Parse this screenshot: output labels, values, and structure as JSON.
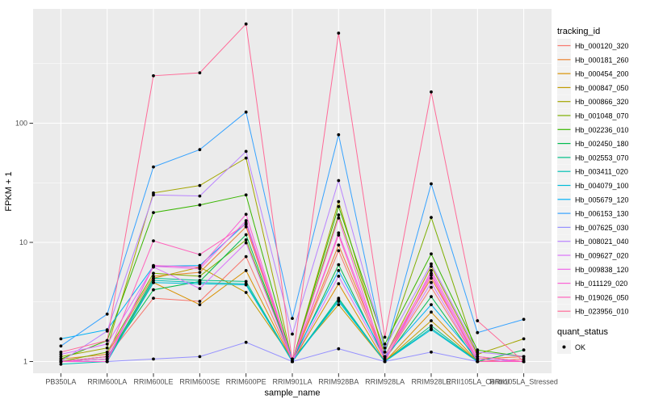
{
  "figure": {
    "xlabel": "sample_name",
    "ylabel": "FPKM + 1",
    "legend_title_series": "tracking_id",
    "legend_title_points": "quant_status",
    "quant_status_label": "OK"
  },
  "chart_data": {
    "type": "line",
    "title": "",
    "xlabel": "sample_name",
    "ylabel": "FPKM + 1",
    "y_scale": "log10",
    "y_ticks": [
      1,
      10,
      100
    ],
    "y_minor_gridlines": [
      3.162,
      31.62,
      316.2
    ],
    "ylim": [
      0.93,
      900
    ],
    "grid": true,
    "panel_bg": "#EBEBEB",
    "gridline_color": "#FFFFFF",
    "point_color": "#000000",
    "legend_position": "right",
    "legend_titles": {
      "series": "tracking_id",
      "points": "quant_status"
    },
    "point_status_label": "OK",
    "categories": [
      "PB350LA",
      "RRIM600LA",
      "RRIM600LE",
      "RRIM600SE",
      "RRIM600PE",
      "RRIM901LA",
      "RRIM928BA",
      "RRIM928LA",
      "RRIM928LE",
      "RRII105LA_Control",
      "RRII105LA_Stressed"
    ],
    "series": [
      {
        "name": "Hb_000120_320",
        "color": "#F8766D",
        "values": [
          1.0,
          1.1,
          3.4,
          3.2,
          7.6,
          1.0,
          8.5,
          1.05,
          4.2,
          1.0,
          1.05
        ]
      },
      {
        "name": "Hb_000181_260",
        "color": "#EA8331",
        "values": [
          1.05,
          1.15,
          5.2,
          5.6,
          13.5,
          1.0,
          9.5,
          1.1,
          5.0,
          1.05,
          1.1
        ]
      },
      {
        "name": "Hb_000454_200",
        "color": "#D89000",
        "values": [
          1.0,
          1.05,
          4.6,
          3.0,
          5.8,
          1.0,
          4.5,
          1.0,
          2.6,
          1.0,
          1.0
        ]
      },
      {
        "name": "Hb_000847_050",
        "color": "#C09B00",
        "values": [
          1.0,
          1.0,
          5.0,
          6.2,
          3.8,
          1.05,
          3.0,
          1.0,
          2.2,
          1.0,
          1.0
        ]
      },
      {
        "name": "Hb_000866_320",
        "color": "#A3A500",
        "values": [
          1.1,
          1.3,
          26,
          30,
          51,
          1.0,
          22,
          1.1,
          6.3,
          1.15,
          1.55
        ]
      },
      {
        "name": "Hb_001048_070",
        "color": "#7CAE00",
        "values": [
          1.0,
          1.2,
          5.5,
          5.2,
          10.5,
          1.0,
          17,
          1.2,
          16.2,
          1.1,
          1.0
        ]
      },
      {
        "name": "Hb_002236_010",
        "color": "#39B600",
        "values": [
          1.05,
          1.5,
          17.8,
          20.6,
          25,
          1.0,
          20,
          1.4,
          8.0,
          1.25,
          1.1
        ]
      },
      {
        "name": "Hb_002450_180",
        "color": "#00BB4E",
        "values": [
          1.0,
          1.1,
          4.0,
          4.7,
          11.6,
          1.0,
          6.5,
          1.05,
          3.5,
          1.0,
          1.25
        ]
      },
      {
        "name": "Hb_002553_070",
        "color": "#00C087",
        "values": [
          1.0,
          1.05,
          5.0,
          4.8,
          4.7,
          1.0,
          3.4,
          1.0,
          2.0,
          1.0,
          1.0
        ]
      },
      {
        "name": "Hb_003411_020",
        "color": "#00C0B4",
        "values": [
          0.95,
          1.0,
          4.8,
          4.6,
          4.5,
          1.0,
          3.3,
          1.0,
          1.9,
          1.0,
          1.0
        ]
      },
      {
        "name": "Hb_004079_100",
        "color": "#00BCD8",
        "values": [
          1.0,
          1.0,
          4.6,
          4.5,
          4.4,
          1.0,
          3.2,
          1.0,
          1.85,
          1.0,
          1.0
        ]
      },
      {
        "name": "Hb_005679_120",
        "color": "#00B0F6",
        "values": [
          1.55,
          1.85,
          6.3,
          6.4,
          14.5,
          1.05,
          5.8,
          1.1,
          3.0,
          1.05,
          1.0
        ]
      },
      {
        "name": "Hb_006153_130",
        "color": "#35A2FF",
        "values": [
          1.35,
          2.5,
          43,
          60,
          124,
          2.3,
          80,
          1.2,
          31,
          1.75,
          2.26
        ]
      },
      {
        "name": "Hb_007625_030",
        "color": "#9590FF",
        "values": [
          1.0,
          1.0,
          1.05,
          1.1,
          1.45,
          1.0,
          1.28,
          1.0,
          1.2,
          1.0,
          1.0
        ]
      },
      {
        "name": "Hb_008021_040",
        "color": "#B983FF",
        "values": [
          1.0,
          1.8,
          25,
          24.5,
          58,
          1.7,
          33,
          1.3,
          6.6,
          1.2,
          1.1
        ]
      },
      {
        "name": "Hb_009627_020",
        "color": "#DA72FB",
        "values": [
          1.15,
          1.4,
          6.2,
          4.1,
          9.9,
          1.0,
          5.2,
          1.05,
          4.6,
          1.0,
          1.0
        ]
      },
      {
        "name": "Hb_009838_120",
        "color": "#F066EA",
        "values": [
          1.0,
          1.05,
          6.3,
          6.0,
          15.2,
          1.0,
          12.0,
          1.1,
          5.5,
          1.05,
          1.0
        ]
      },
      {
        "name": "Hb_011129_020",
        "color": "#FC61D5",
        "values": [
          1.0,
          1.0,
          6.4,
          6.2,
          17.2,
          1.0,
          16.0,
          1.0,
          5.8,
          1.1,
          1.0
        ]
      },
      {
        "name": "Hb_019026_050",
        "color": "#FF62BC",
        "values": [
          1.0,
          1.1,
          10.3,
          7.9,
          14.2,
          1.0,
          11.5,
          1.0,
          5.3,
          1.0,
          1.0
        ]
      },
      {
        "name": "Hb_023956_010",
        "color": "#FF6A98",
        "values": [
          1.2,
          1.5,
          250,
          265,
          680,
          1.0,
          570,
          1.6,
          183,
          2.2,
          1.0
        ]
      }
    ]
  }
}
